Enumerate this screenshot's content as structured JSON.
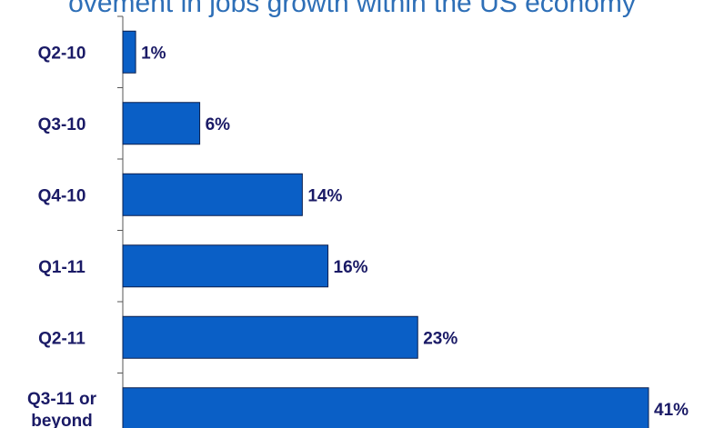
{
  "chart_data": {
    "type": "bar",
    "orientation": "horizontal",
    "title": "ovement in jobs growth within the US economy",
    "categories": [
      [
        "Q2-10"
      ],
      [
        "Q3-10"
      ],
      [
        "Q4-10"
      ],
      [
        "Q1-11"
      ],
      [
        "Q2-11"
      ],
      [
        "Q3-11 or",
        "beyond"
      ]
    ],
    "values": [
      1,
      6,
      14,
      16,
      23,
      41
    ],
    "value_labels": [
      "1%",
      "6%",
      "14%",
      "16%",
      "23%",
      "41%"
    ],
    "xlim": [
      0,
      41
    ],
    "bar_color": "#0a5fc6",
    "label_color": "#1a1a66",
    "grid": false,
    "legend": "none"
  }
}
